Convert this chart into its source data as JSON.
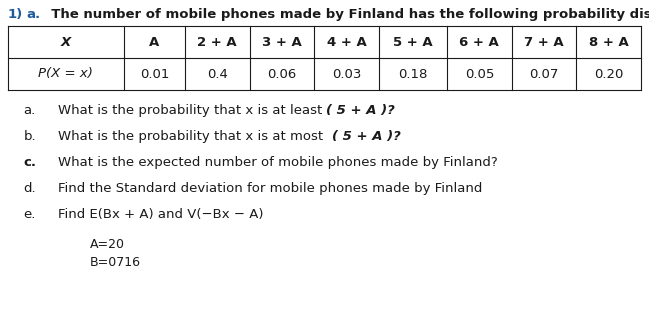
{
  "title_num": "1)",
  "title_label": "a.",
  "title_rest": "  The number of mobile phones made by Finland has the following probability distribution:",
  "table_headers": [
    "X",
    "A",
    "2 + A",
    "3 + A",
    "4 + A",
    "5 + A",
    "6 + A",
    "7 + A",
    "8 + A"
  ],
  "table_row_label": "P(X = x)",
  "table_values": [
    "0.01",
    "0.4",
    "0.06",
    "0.03",
    "0.18",
    "0.05",
    "0.07",
    "0.20"
  ],
  "q_labels": [
    "a.",
    "b.",
    "c.",
    "d.",
    "e."
  ],
  "q_label_bold": [
    false,
    false,
    true,
    false,
    false
  ],
  "q_texts_plain": [
    "What is the probability that x is at least ",
    "What is the probability that x is at most  ",
    "What is the expected number of mobile phones made by Finland?",
    "Find the Standard deviation for mobile phones made by Finland",
    "Find E(Bx + A) and V(−Bx − A)"
  ],
  "q_bold_part": [
    "( 5 + A )?",
    "( 5 + A )?",
    "",
    "",
    ""
  ],
  "note_lines": [
    "A=20",
    "B=0716"
  ],
  "bg_color": "#ffffff",
  "text_color": "#1a1a1a",
  "blue_color": "#1F5C9E",
  "title_fontsize": 9.5,
  "table_fontsize": 9.5,
  "q_fontsize": 9.5,
  "note_fontsize": 9.0,
  "col_widths_rel": [
    1.7,
    0.9,
    0.95,
    0.95,
    0.95,
    1.0,
    0.95,
    0.95,
    0.95
  ]
}
